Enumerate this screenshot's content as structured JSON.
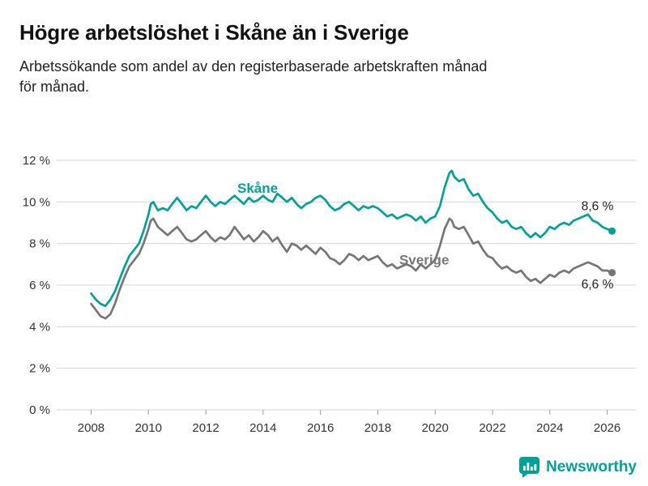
{
  "page": {
    "title": "Högre arbetslöshet i Skåne än i Sverige",
    "subtitle_line1": "Arbetssökande som andel av den registerbaserade arbetskraften månad",
    "subtitle_line2": "för månad."
  },
  "footer": {
    "brand": "Newsworthy",
    "brand_color": "#00a099",
    "logo_icon": "bar-chart-bubble-icon"
  },
  "chart_data": {
    "type": "line",
    "title": "Högre arbetslöshet i Skåne än i Sverige",
    "xlabel": "",
    "ylabel": "",
    "ylim": [
      0,
      12
    ],
    "xlim": [
      2006.8,
      2027.0
    ],
    "grid": "horizontal",
    "legend_position": "inline-labels",
    "colors": {
      "skane": "#00a099",
      "sverige": "#767676",
      "grid": "#d4d4d4",
      "axis_text": "#333333"
    },
    "yticks": [
      {
        "value": 0,
        "label": "0 %"
      },
      {
        "value": 2,
        "label": "2 %"
      },
      {
        "value": 4,
        "label": "4 %"
      },
      {
        "value": 6,
        "label": "6 %"
      },
      {
        "value": 8,
        "label": "8 %"
      },
      {
        "value": 10,
        "label": "10 %"
      },
      {
        "value": 12,
        "label": "12 %"
      }
    ],
    "xticks": [
      {
        "value": 2008,
        "label": "2008"
      },
      {
        "value": 2010,
        "label": "2010"
      },
      {
        "value": 2012,
        "label": "2012"
      },
      {
        "value": 2014,
        "label": "2014"
      },
      {
        "value": 2016,
        "label": "2016"
      },
      {
        "value": 2018,
        "label": "2018"
      },
      {
        "value": 2020,
        "label": "2020"
      },
      {
        "value": 2022,
        "label": "2022"
      },
      {
        "value": 2024,
        "label": "2024"
      },
      {
        "value": 2026,
        "label": "2026"
      }
    ],
    "series": [
      {
        "id": "skane",
        "name": "Skåne",
        "color": "#00a099",
        "end_value": 8.6,
        "end_label": "8,6 %",
        "name_label_pos": {
          "x": 2013.1,
          "y": 10.45
        },
        "end_label_pos": {
          "x": 2025.1,
          "y": 9.6
        },
        "points": [
          [
            2008.0,
            5.6
          ],
          [
            2008.17,
            5.3
          ],
          [
            2008.33,
            5.1
          ],
          [
            2008.5,
            5.0
          ],
          [
            2008.67,
            5.3
          ],
          [
            2008.83,
            5.7
          ],
          [
            2009.0,
            6.3
          ],
          [
            2009.17,
            6.9
          ],
          [
            2009.33,
            7.4
          ],
          [
            2009.5,
            7.7
          ],
          [
            2009.67,
            8.0
          ],
          [
            2009.83,
            8.6
          ],
          [
            2010.0,
            9.4
          ],
          [
            2010.08,
            9.9
          ],
          [
            2010.17,
            10.0
          ],
          [
            2010.33,
            9.6
          ],
          [
            2010.5,
            9.7
          ],
          [
            2010.67,
            9.6
          ],
          [
            2010.83,
            9.9
          ],
          [
            2011.0,
            10.2
          ],
          [
            2011.17,
            9.9
          ],
          [
            2011.33,
            9.6
          ],
          [
            2011.5,
            9.8
          ],
          [
            2011.67,
            9.7
          ],
          [
            2011.83,
            10.0
          ],
          [
            2012.0,
            10.3
          ],
          [
            2012.17,
            10.0
          ],
          [
            2012.33,
            9.8
          ],
          [
            2012.5,
            10.0
          ],
          [
            2012.67,
            9.9
          ],
          [
            2012.83,
            10.1
          ],
          [
            2013.0,
            10.3
          ],
          [
            2013.17,
            10.1
          ],
          [
            2013.33,
            9.9
          ],
          [
            2013.5,
            10.2
          ],
          [
            2013.67,
            10.0
          ],
          [
            2013.83,
            10.1
          ],
          [
            2014.0,
            10.3
          ],
          [
            2014.17,
            10.1
          ],
          [
            2014.33,
            10.0
          ],
          [
            2014.5,
            10.4
          ],
          [
            2014.67,
            10.2
          ],
          [
            2014.83,
            10.0
          ],
          [
            2015.0,
            10.2
          ],
          [
            2015.17,
            9.9
          ],
          [
            2015.33,
            9.7
          ],
          [
            2015.5,
            9.9
          ],
          [
            2015.67,
            10.0
          ],
          [
            2015.83,
            10.2
          ],
          [
            2016.0,
            10.3
          ],
          [
            2016.17,
            10.1
          ],
          [
            2016.33,
            9.8
          ],
          [
            2016.5,
            9.6
          ],
          [
            2016.67,
            9.7
          ],
          [
            2016.83,
            9.9
          ],
          [
            2017.0,
            10.0
          ],
          [
            2017.17,
            9.8
          ],
          [
            2017.33,
            9.6
          ],
          [
            2017.5,
            9.8
          ],
          [
            2017.67,
            9.7
          ],
          [
            2017.83,
            9.8
          ],
          [
            2018.0,
            9.7
          ],
          [
            2018.17,
            9.5
          ],
          [
            2018.33,
            9.3
          ],
          [
            2018.5,
            9.4
          ],
          [
            2018.67,
            9.2
          ],
          [
            2018.83,
            9.3
          ],
          [
            2019.0,
            9.4
          ],
          [
            2019.17,
            9.3
          ],
          [
            2019.33,
            9.1
          ],
          [
            2019.5,
            9.3
          ],
          [
            2019.67,
            9.0
          ],
          [
            2019.83,
            9.2
          ],
          [
            2020.0,
            9.3
          ],
          [
            2020.17,
            9.8
          ],
          [
            2020.33,
            10.7
          ],
          [
            2020.5,
            11.4
          ],
          [
            2020.58,
            11.5
          ],
          [
            2020.67,
            11.2
          ],
          [
            2020.83,
            11.0
          ],
          [
            2021.0,
            11.1
          ],
          [
            2021.17,
            10.6
          ],
          [
            2021.33,
            10.3
          ],
          [
            2021.5,
            10.4
          ],
          [
            2021.67,
            10.0
          ],
          [
            2021.83,
            9.7
          ],
          [
            2022.0,
            9.5
          ],
          [
            2022.17,
            9.2
          ],
          [
            2022.33,
            9.0
          ],
          [
            2022.5,
            9.1
          ],
          [
            2022.67,
            8.8
          ],
          [
            2022.83,
            8.7
          ],
          [
            2023.0,
            8.8
          ],
          [
            2023.17,
            8.5
          ],
          [
            2023.33,
            8.3
          ],
          [
            2023.5,
            8.5
          ],
          [
            2023.67,
            8.3
          ],
          [
            2023.83,
            8.5
          ],
          [
            2024.0,
            8.8
          ],
          [
            2024.17,
            8.7
          ],
          [
            2024.33,
            8.9
          ],
          [
            2024.5,
            9.0
          ],
          [
            2024.67,
            8.9
          ],
          [
            2024.83,
            9.1
          ],
          [
            2025.0,
            9.2
          ],
          [
            2025.17,
            9.3
          ],
          [
            2025.33,
            9.4
          ],
          [
            2025.5,
            9.1
          ],
          [
            2025.67,
            9.0
          ],
          [
            2025.83,
            8.8
          ],
          [
            2026.0,
            8.7
          ],
          [
            2026.17,
            8.6
          ]
        ]
      },
      {
        "id": "sverige",
        "name": "Sverige",
        "color": "#767676",
        "end_value": 6.6,
        "end_label": "6,6 %",
        "name_label_pos": {
          "x": 2018.75,
          "y": 7.0
        },
        "end_label_pos": {
          "x": 2025.1,
          "y": 5.85
        },
        "points": [
          [
            2008.0,
            5.1
          ],
          [
            2008.17,
            4.8
          ],
          [
            2008.33,
            4.5
          ],
          [
            2008.5,
            4.4
          ],
          [
            2008.67,
            4.6
          ],
          [
            2008.83,
            5.1
          ],
          [
            2009.0,
            5.8
          ],
          [
            2009.17,
            6.4
          ],
          [
            2009.33,
            6.9
          ],
          [
            2009.5,
            7.2
          ],
          [
            2009.67,
            7.5
          ],
          [
            2009.83,
            8.0
          ],
          [
            2010.0,
            8.7
          ],
          [
            2010.08,
            9.1
          ],
          [
            2010.17,
            9.2
          ],
          [
            2010.33,
            8.8
          ],
          [
            2010.5,
            8.6
          ],
          [
            2010.67,
            8.4
          ],
          [
            2010.83,
            8.6
          ],
          [
            2011.0,
            8.8
          ],
          [
            2011.17,
            8.5
          ],
          [
            2011.33,
            8.2
          ],
          [
            2011.5,
            8.1
          ],
          [
            2011.67,
            8.2
          ],
          [
            2011.83,
            8.4
          ],
          [
            2012.0,
            8.6
          ],
          [
            2012.17,
            8.3
          ],
          [
            2012.33,
            8.1
          ],
          [
            2012.5,
            8.3
          ],
          [
            2012.67,
            8.2
          ],
          [
            2012.83,
            8.4
          ],
          [
            2013.0,
            8.8
          ],
          [
            2013.17,
            8.5
          ],
          [
            2013.33,
            8.2
          ],
          [
            2013.5,
            8.4
          ],
          [
            2013.67,
            8.1
          ],
          [
            2013.83,
            8.3
          ],
          [
            2014.0,
            8.6
          ],
          [
            2014.17,
            8.4
          ],
          [
            2014.33,
            8.1
          ],
          [
            2014.5,
            8.3
          ],
          [
            2014.67,
            7.9
          ],
          [
            2014.83,
            7.6
          ],
          [
            2015.0,
            8.0
          ],
          [
            2015.17,
            7.9
          ],
          [
            2015.33,
            7.7
          ],
          [
            2015.5,
            7.9
          ],
          [
            2015.67,
            7.7
          ],
          [
            2015.83,
            7.5
          ],
          [
            2016.0,
            7.8
          ],
          [
            2016.17,
            7.6
          ],
          [
            2016.33,
            7.3
          ],
          [
            2016.5,
            7.2
          ],
          [
            2016.67,
            7.0
          ],
          [
            2016.83,
            7.2
          ],
          [
            2017.0,
            7.5
          ],
          [
            2017.17,
            7.4
          ],
          [
            2017.33,
            7.2
          ],
          [
            2017.5,
            7.4
          ],
          [
            2017.67,
            7.2
          ],
          [
            2017.83,
            7.3
          ],
          [
            2018.0,
            7.4
          ],
          [
            2018.17,
            7.1
          ],
          [
            2018.33,
            6.9
          ],
          [
            2018.5,
            7.0
          ],
          [
            2018.67,
            6.8
          ],
          [
            2018.83,
            6.9
          ],
          [
            2019.0,
            7.0
          ],
          [
            2019.17,
            6.9
          ],
          [
            2019.33,
            6.7
          ],
          [
            2019.5,
            7.0
          ],
          [
            2019.67,
            6.8
          ],
          [
            2019.83,
            7.0
          ],
          [
            2020.0,
            7.2
          ],
          [
            2020.17,
            7.9
          ],
          [
            2020.33,
            8.7
          ],
          [
            2020.5,
            9.2
          ],
          [
            2020.58,
            9.1
          ],
          [
            2020.67,
            8.8
          ],
          [
            2020.83,
            8.7
          ],
          [
            2021.0,
            8.8
          ],
          [
            2021.17,
            8.4
          ],
          [
            2021.33,
            8.0
          ],
          [
            2021.5,
            8.1
          ],
          [
            2021.67,
            7.7
          ],
          [
            2021.83,
            7.4
          ],
          [
            2022.0,
            7.3
          ],
          [
            2022.17,
            7.0
          ],
          [
            2022.33,
            6.8
          ],
          [
            2022.5,
            6.9
          ],
          [
            2022.67,
            6.7
          ],
          [
            2022.83,
            6.6
          ],
          [
            2023.0,
            6.7
          ],
          [
            2023.17,
            6.4
          ],
          [
            2023.33,
            6.2
          ],
          [
            2023.5,
            6.3
          ],
          [
            2023.67,
            6.1
          ],
          [
            2023.83,
            6.3
          ],
          [
            2024.0,
            6.5
          ],
          [
            2024.17,
            6.4
          ],
          [
            2024.33,
            6.6
          ],
          [
            2024.5,
            6.7
          ],
          [
            2024.67,
            6.6
          ],
          [
            2024.83,
            6.8
          ],
          [
            2025.0,
            6.9
          ],
          [
            2025.17,
            7.0
          ],
          [
            2025.33,
            7.1
          ],
          [
            2025.5,
            7.0
          ],
          [
            2025.67,
            6.9
          ],
          [
            2025.83,
            6.7
          ],
          [
            2026.0,
            6.7
          ],
          [
            2026.17,
            6.6
          ]
        ]
      }
    ]
  }
}
